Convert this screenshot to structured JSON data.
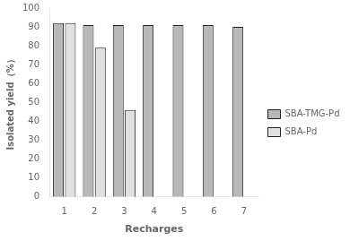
{
  "chart_data": {
    "type": "bar",
    "xlabel": "Recharges",
    "ylabel": "Isolated yield（%）",
    "categories": [
      "1",
      "2",
      "3",
      "4",
      "5",
      "6",
      "7"
    ],
    "series": [
      {
        "name": "SBA-TMG-Pd",
        "color": "#b8b8b8",
        "values": [
          92,
          91,
          91,
          91,
          91,
          91,
          90
        ]
      },
      {
        "name": "SBA-Pd",
        "color": "#e0e0e0",
        "values": [
          92,
          79,
          46,
          null,
          null,
          null,
          null
        ]
      }
    ],
    "ylim": [
      0,
      100
    ],
    "yticks": [
      0,
      10,
      20,
      30,
      40,
      50,
      60,
      70,
      80,
      90,
      100
    ],
    "grid": false,
    "legend": "right"
  }
}
